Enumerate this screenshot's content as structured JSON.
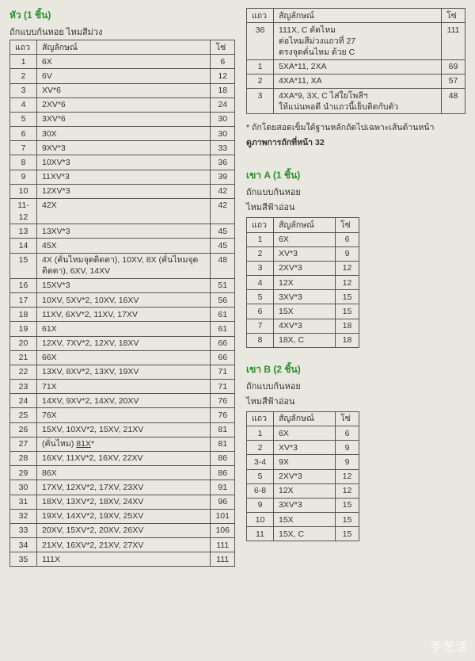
{
  "headers": {
    "row": "แถว",
    "symbol": "สัญลักษณ์",
    "count": "โซ่"
  },
  "main": {
    "title": "หัว (1 ชิ้น)",
    "sub": "ถักแบบก้นหอย  ไหมสีม่วง",
    "rows": [
      [
        "1",
        "6X",
        "6"
      ],
      [
        "2",
        "6V",
        "12"
      ],
      [
        "3",
        "XV*6",
        "18"
      ],
      [
        "4",
        "2XV*6",
        "24"
      ],
      [
        "5",
        "3XV*6",
        "30"
      ],
      [
        "6",
        "30X",
        "30"
      ],
      [
        "7",
        "9XV*3",
        "33"
      ],
      [
        "8",
        "10XV*3",
        "36"
      ],
      [
        "9",
        "11XV*3",
        "39"
      ],
      [
        "10",
        "12XV*3",
        "42"
      ],
      [
        "11-12",
        "42X",
        "42"
      ],
      [
        "13",
        "13XV*3",
        "45"
      ],
      [
        "14",
        "45X",
        "45"
      ],
      [
        "15",
        "4X (คั่นไหมจุดติดตา), 10XV, 8X (คั่นไหมจุดติดตา), 6XV, 14XV",
        "48"
      ],
      [
        "16",
        "15XV*3",
        "51"
      ],
      [
        "17",
        "10XV, 5XV*2, 10XV, 16XV",
        "56"
      ],
      [
        "18",
        "11XV, 6XV*2, 11XV, 17XV",
        "61"
      ],
      [
        "19",
        "61X",
        "61"
      ],
      [
        "20",
        "12XV, 7XV*2, 12XV, 18XV",
        "66"
      ],
      [
        "21",
        "66X",
        "66"
      ],
      [
        "22",
        "13XV, 8XV*2, 13XV, 19XV",
        "71"
      ],
      [
        "23",
        "71X",
        "71"
      ],
      [
        "24",
        "14XV, 9XV*2, 14XV, 20XV",
        "76"
      ],
      [
        "25",
        "76X",
        "76"
      ],
      [
        "26",
        "15XV, 10XV*2, 15XV, 21XV",
        "81"
      ],
      [
        "27",
        "(คั่นไหม) 81X*",
        "81"
      ],
      [
        "28",
        "16XV, 11XV*2, 16XV, 22XV",
        "86"
      ],
      [
        "29",
        "86X",
        "86"
      ],
      [
        "30",
        "17XV, 12XV*2, 17XV, 23XV",
        "91"
      ],
      [
        "31",
        "18XV, 13XV*2, 18XV, 24XV",
        "96"
      ],
      [
        "32",
        "19XV, 14XV*2, 19XV, 25XV",
        "101"
      ],
      [
        "33",
        "20XV, 15XV*2, 20XV, 26XV",
        "106"
      ],
      [
        "34",
        "21XV, 16XV*2, 21XV, 27XV",
        "111"
      ],
      [
        "35",
        "111X",
        "111"
      ]
    ]
  },
  "top_right": {
    "rows": [
      [
        "36",
        "111X, C ตัดไหม\nต่อไหมสีม่วงแถวที่ 27\nตรงจุดคั่นไหม ด้วย C",
        "111"
      ],
      [
        "1",
        "5XA*11, 2XA",
        "69"
      ],
      [
        "2",
        "4XA*11, XA",
        "57"
      ],
      [
        "3",
        "4XA*9, 3X, C ไส่ใยโพลีฯ\nให้แน่นพอดี นำแถวนี้เย็บติดกับตัว",
        "48"
      ]
    ]
  },
  "note1": "* ถักโดยสอดเข็มใต้ฐานหลักถัดไปเฉพาะเส้นด้านหน้า",
  "note2": "ดูภาพการถักที่หน้า 32",
  "legA": {
    "title": "เขา A (1 ชิ้น)",
    "sub1": "ถักแบบก้นหอย",
    "sub2": "ไหมสีฟ้าอ่อน",
    "rows": [
      [
        "1",
        "6X",
        "6"
      ],
      [
        "2",
        "XV*3",
        "9"
      ],
      [
        "3",
        "2XV*3",
        "12"
      ],
      [
        "4",
        "12X",
        "12"
      ],
      [
        "5",
        "3XV*3",
        "15"
      ],
      [
        "6",
        "15X",
        "15"
      ],
      [
        "7",
        "4XV*3",
        "18"
      ],
      [
        "8",
        "18X, C",
        "18"
      ]
    ]
  },
  "legB": {
    "title": "เขา B (2 ชิ้น)",
    "sub1": "ถักแบบก้นหอย",
    "sub2": "ไหมสีฟ้าอ่อน",
    "rows": [
      [
        "1",
        "6X",
        "6"
      ],
      [
        "2",
        "XV*3",
        "9"
      ],
      [
        "3-4",
        "9X",
        "9"
      ],
      [
        "5",
        "2XV*3",
        "12"
      ],
      [
        "6-8",
        "12X",
        "12"
      ],
      [
        "9",
        "3XV*3",
        "15"
      ],
      [
        "10",
        "15X",
        "15"
      ],
      [
        "11",
        "15X, C",
        "15"
      ]
    ]
  },
  "watermark": "手艺活"
}
